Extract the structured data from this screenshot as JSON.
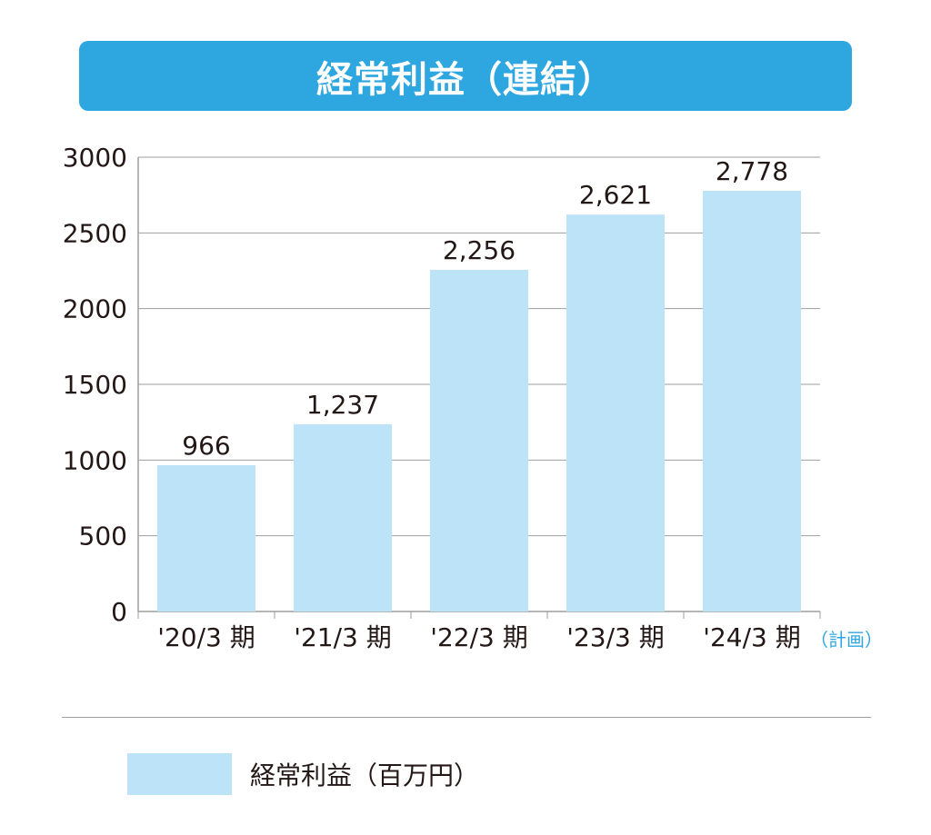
{
  "title": "経常利益（連結）",
  "colors": {
    "banner": "#2ea7e0",
    "bar": "#bde3f8",
    "grid": "#9e9e9e",
    "note": "#2ea7e0"
  },
  "legend": {
    "label": "経常利益（百万円）"
  },
  "chart_data": {
    "type": "bar",
    "title": "経常利益（連結）",
    "categories": [
      "'20/3 期",
      "'21/3 期",
      "'22/3 期",
      "'23/3 期",
      "'24/3 期"
    ],
    "category_note": {
      "index": 4,
      "text": "（計画）"
    },
    "series": [
      {
        "name": "経常利益（百万円）",
        "values": [
          966,
          1237,
          2256,
          2621,
          2778
        ]
      }
    ],
    "value_labels": [
      "966",
      "1,237",
      "2,256",
      "2,621",
      "2,778"
    ],
    "ylim": [
      0,
      3000
    ],
    "yticks": [
      0,
      500,
      1000,
      1500,
      2000,
      2500,
      3000
    ],
    "grid": true,
    "legend_position": "bottom"
  }
}
